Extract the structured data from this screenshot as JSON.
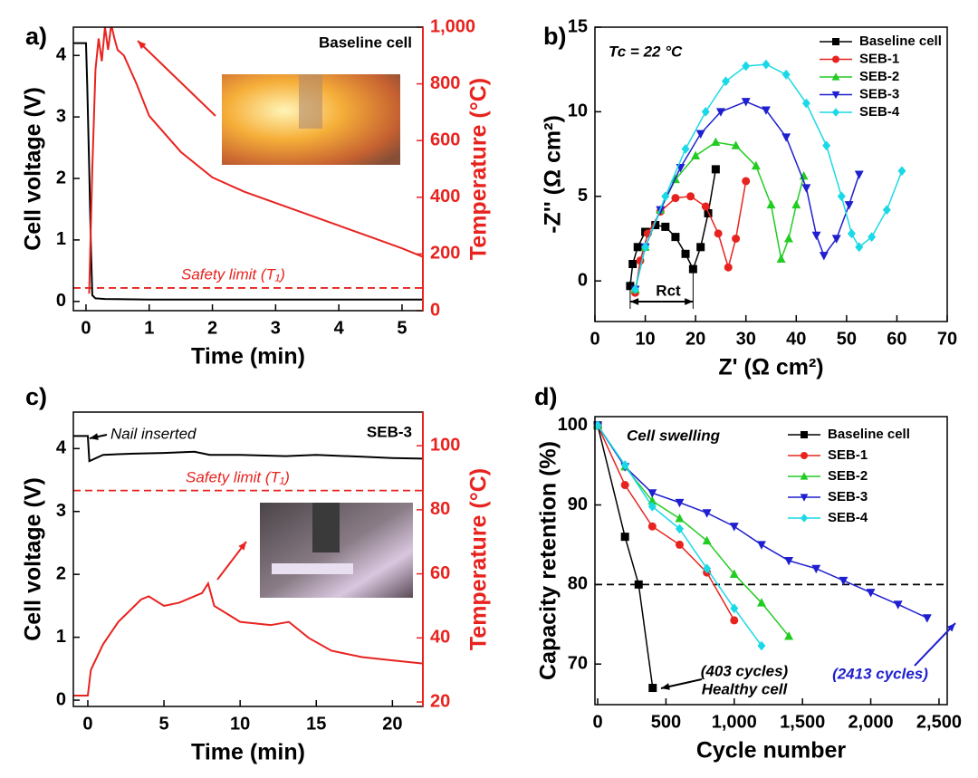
{
  "chart_data": [
    {
      "type": "line",
      "panel": "a)",
      "xlabel": "Time (min)",
      "ylabel": "Cell voltage (V)",
      "y2label": "Temperature (°C)",
      "y2color": "#e8231f",
      "xlim": [
        -0.2,
        5.33
      ],
      "xticks": [
        0,
        1,
        2,
        3,
        4,
        5
      ],
      "ylim": [
        -0.15,
        4.46
      ],
      "yticks": [
        0,
        1,
        2,
        3,
        4
      ],
      "y2lim": [
        0,
        1000
      ],
      "y2ticks": [
        0,
        200,
        400,
        600,
        800,
        {
          "value": 1000,
          "label": "1,000"
        }
      ],
      "series": [
        {
          "name": "Cell voltage",
          "color": "#000000",
          "x": [
            -0.2,
            0,
            0.02,
            0.05,
            0.08,
            0.1,
            0.15,
            0.3,
            1,
            2,
            3,
            4,
            5.33
          ],
          "values": [
            4.2,
            4.2,
            3.5,
            2.2,
            0.8,
            0.1,
            0.05,
            0.04,
            0.03,
            0.03,
            0.03,
            0.03,
            0.03
          ]
        },
        {
          "name": "Temperature",
          "color": "#e8231f",
          "axis": "y2",
          "x": [
            0.05,
            0.1,
            0.15,
            0.2,
            0.25,
            0.3,
            0.35,
            0.4,
            0.45,
            0.5,
            0.6,
            0.8,
            1,
            1.5,
            2,
            2.5,
            3,
            3.5,
            4,
            4.5,
            5,
            5.33
          ],
          "values": [
            60,
            500,
            850,
            960,
            880,
            1000,
            920,
            1010,
            960,
            920,
            900,
            800,
            687,
            560,
            470,
            420,
            380,
            340,
            300,
            260,
            220,
            190
          ]
        }
      ],
      "reference_lines": [
        {
          "y": 80,
          "axis": "y2",
          "color": "#e8231f",
          "label": "Safety limit (T₁)"
        }
      ],
      "annotations": [
        "Baseline cell"
      ]
    },
    {
      "type": "line",
      "panel": "b)",
      "xlabel": "Z' (Ω cm²)",
      "ylabel": "-Z'' (Ω cm²)",
      "xlim": [
        0,
        70
      ],
      "xticks": [
        0,
        10,
        20,
        30,
        40,
        50,
        60,
        70
      ],
      "ylim": [
        -2.4,
        15
      ],
      "yticks": [
        0,
        5,
        10,
        15
      ],
      "legend": "upper right",
      "series": [
        {
          "name": "Baseline cell",
          "color": "#000000",
          "marker": "square",
          "x": [
            7,
            7.5,
            8.5,
            10,
            12,
            14,
            16,
            18,
            19.5,
            21,
            22.5,
            24
          ],
          "values": [
            -0.3,
            1,
            2,
            2.9,
            3.3,
            3.2,
            2.6,
            1.6,
            0.7,
            2,
            4,
            6.6
          ]
        },
        {
          "name": "SEB-1",
          "color": "#e8231f",
          "marker": "circle",
          "x": [
            8,
            9,
            10.5,
            13,
            16,
            19,
            22,
            24.5,
            26.5,
            28,
            30
          ],
          "values": [
            -0.7,
            1.2,
            2.8,
            4.1,
            4.9,
            5,
            4.4,
            2.8,
            0.8,
            2.5,
            5.9
          ]
        },
        {
          "name": "SEB-2",
          "color": "#22cc22",
          "marker": "triangle",
          "x": [
            8,
            10,
            13,
            16,
            20,
            24,
            28,
            32,
            35,
            37,
            38.5,
            40,
            41.5
          ],
          "values": [
            -0.5,
            2,
            4.2,
            6,
            7.4,
            8.2,
            8,
            6.8,
            4.5,
            1.3,
            2.5,
            4.5,
            6.2
          ]
        },
        {
          "name": "SEB-3",
          "color": "#1f1fcf",
          "marker": "triangle-down",
          "x": [
            8,
            10,
            13,
            17,
            21,
            25,
            30,
            34,
            38,
            42,
            44,
            45.5,
            48,
            50.5,
            52.5
          ],
          "values": [
            -0.5,
            2,
            4.2,
            6.7,
            8.7,
            10,
            10.6,
            10.1,
            8.5,
            5.5,
            2.7,
            1.5,
            2.5,
            4.5,
            6.3
          ]
        },
        {
          "name": "SEB-4",
          "color": "#19d9e6",
          "marker": "diamond",
          "x": [
            8,
            10,
            14,
            18,
            22,
            26,
            30,
            34,
            38,
            42,
            46,
            49,
            51,
            52.5,
            55,
            58,
            61
          ],
          "values": [
            -0.5,
            2,
            5,
            7.8,
            10,
            11.8,
            12.7,
            12.8,
            12.2,
            10.5,
            8,
            5,
            2.8,
            2,
            2.6,
            4.2,
            6.5
          ]
        }
      ],
      "annotations": [
        "Tc = 22 °C",
        "Rct"
      ]
    },
    {
      "type": "line",
      "panel": "c)",
      "xlabel": "Time (min)",
      "ylabel": "Cell voltage (V)",
      "y2label": "Temperature (°C)",
      "y2color": "#e8231f",
      "xlim": [
        -0.95,
        22
      ],
      "xticks": [
        0,
        5,
        10,
        15,
        20
      ],
      "ylim": [
        -0.1,
        4.58
      ],
      "yticks": [
        0,
        1,
        2,
        3,
        4
      ],
      "y2lim": [
        18.6,
        110.5
      ],
      "y2ticks": [
        20,
        40,
        60,
        80,
        100
      ],
      "series": [
        {
          "name": "Cell voltage",
          "color": "#000000",
          "x": [
            -0.95,
            0,
            0.1,
            1,
            3,
            5,
            7,
            8,
            10,
            13,
            15,
            18,
            20,
            22
          ],
          "values": [
            4.2,
            4.2,
            3.8,
            3.9,
            3.92,
            3.93,
            3.95,
            3.9,
            3.9,
            3.88,
            3.9,
            3.87,
            3.85,
            3.84
          ]
        },
        {
          "name": "Temperature",
          "color": "#e8231f",
          "axis": "y2",
          "x": [
            -0.95,
            0,
            0.2,
            1,
            2,
            3.5,
            4,
            5,
            6,
            7.5,
            7.9,
            8.3,
            10,
            12,
            13.2,
            14.5,
            16,
            18,
            20,
            22
          ],
          "values": [
            22,
            22,
            30,
            38,
            45,
            52,
            53,
            50,
            51,
            54,
            57,
            50,
            45,
            44,
            45,
            40,
            36,
            34,
            33,
            32
          ]
        }
      ],
      "reference_lines": [
        {
          "y": 86,
          "axis": "y2",
          "color": "#e8231f",
          "label": "Safety limit (T₁)"
        }
      ],
      "annotations": [
        "Nail inserted",
        "SEB-3"
      ]
    },
    {
      "type": "line",
      "panel": "d)",
      "xlabel": "Cycle number",
      "ylabel": "Capacity retention (%)",
      "xlim": [
        -20,
        2560
      ],
      "xticks": [
        0,
        500,
        {
          "value": 1000,
          "label": "1,000"
        },
        {
          "value": 1500,
          "label": "1,500"
        },
        {
          "value": 2000,
          "label": "2,000"
        },
        {
          "value": 2500,
          "label": "2,500"
        }
      ],
      "ylim": [
        64.9,
        101.1
      ],
      "yticks": [
        70,
        80,
        90,
        100
      ],
      "legend": "upper right",
      "series": [
        {
          "name": "Baseline cell",
          "color": "#000000",
          "marker": "square",
          "x": [
            0,
            200,
            300,
            403
          ],
          "values": [
            100,
            86,
            80,
            67
          ]
        },
        {
          "name": "SEB-1",
          "color": "#e8231f",
          "marker": "circle",
          "x": [
            0,
            200,
            400,
            600,
            800,
            1000
          ],
          "values": [
            100,
            92.5,
            87.3,
            85,
            81.5,
            75.5
          ]
        },
        {
          "name": "SEB-2",
          "color": "#22cc22",
          "marker": "triangle",
          "x": [
            0,
            200,
            400,
            600,
            800,
            1000,
            1200,
            1400
          ],
          "values": [
            100,
            94.8,
            90.5,
            88.3,
            85.5,
            81.3,
            77.7,
            73.5
          ]
        },
        {
          "name": "SEB-3",
          "color": "#1f1fcf",
          "marker": "triangle-down",
          "x": [
            0,
            200,
            400,
            600,
            800,
            1000,
            1200,
            1400,
            1600,
            1800,
            2000,
            2200,
            2413
          ],
          "values": [
            100,
            94.8,
            91.5,
            90.3,
            89,
            87.3,
            85,
            83,
            82,
            80.5,
            79,
            77.5,
            75.8
          ]
        },
        {
          "name": "SEB-4",
          "color": "#19d9e6",
          "marker": "diamond",
          "x": [
            0,
            200,
            400,
            600,
            800,
            1000,
            1200
          ],
          "values": [
            100,
            95,
            89.8,
            87,
            82,
            77,
            72.3
          ]
        }
      ],
      "reference_lines": [
        {
          "y": 80,
          "color": "#000000"
        }
      ],
      "annotations": [
        "Cell swelling",
        "(403 cycles)",
        "Healthy cell",
        "(2413 cycles)"
      ]
    }
  ]
}
